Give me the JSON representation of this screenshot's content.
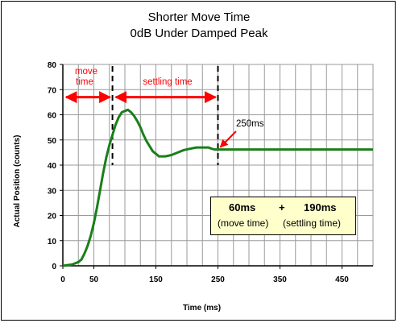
{
  "chart_data": {
    "type": "line",
    "title": "Shorter Move Time",
    "subtitle": "0dB Under Damped Peak",
    "xlabel": "Time (ms)",
    "ylabel": "Actual Position (counts)",
    "xlim": [
      0,
      500
    ],
    "ylim": [
      0,
      80
    ],
    "x_ticks": [
      "0",
      "50",
      "150",
      "250",
      "350",
      "450"
    ],
    "y_ticks": [
      "0",
      "10",
      "20",
      "30",
      "40",
      "50",
      "60",
      "70",
      "80"
    ],
    "grid": true,
    "series": [
      {
        "color": "#1a7f1a",
        "points": [
          [
            0,
            0
          ],
          [
            15,
            0.5
          ],
          [
            20,
            1
          ],
          [
            25,
            1.5
          ],
          [
            30,
            2.5
          ],
          [
            35,
            5
          ],
          [
            40,
            8
          ],
          [
            45,
            12
          ],
          [
            50,
            17
          ],
          [
            55,
            23
          ],
          [
            60,
            30
          ],
          [
            65,
            37
          ],
          [
            70,
            43
          ],
          [
            75,
            48
          ],
          [
            80,
            52
          ],
          [
            85,
            56
          ],
          [
            90,
            59
          ],
          [
            95,
            61
          ],
          [
            100,
            61.5
          ],
          [
            105,
            62
          ],
          [
            110,
            61
          ],
          [
            115,
            59.5
          ],
          [
            120,
            57.5
          ],
          [
            125,
            55
          ],
          [
            130,
            52
          ],
          [
            135,
            49.5
          ],
          [
            140,
            47.5
          ],
          [
            145,
            45.5
          ],
          [
            150,
            44.5
          ],
          [
            155,
            43.5
          ],
          [
            165,
            43.5
          ],
          [
            175,
            44
          ],
          [
            185,
            45
          ],
          [
            195,
            46
          ],
          [
            205,
            46.5
          ],
          [
            215,
            47
          ],
          [
            225,
            47
          ],
          [
            235,
            47
          ],
          [
            240,
            46.5
          ],
          [
            245,
            46.2
          ],
          [
            260,
            46.2
          ],
          [
            300,
            46.2
          ],
          [
            400,
            46.2
          ],
          [
            500,
            46.2
          ]
        ]
      }
    ],
    "markers_x": [
      80,
      250
    ],
    "annotations": {
      "move_time": [
        "move",
        "time"
      ],
      "settling_time": "settling time",
      "point_label": "250ms",
      "box_values": [
        "60ms",
        "+",
        "190ms"
      ],
      "box_labels": [
        "(move time)",
        "(settling time)"
      ]
    }
  }
}
